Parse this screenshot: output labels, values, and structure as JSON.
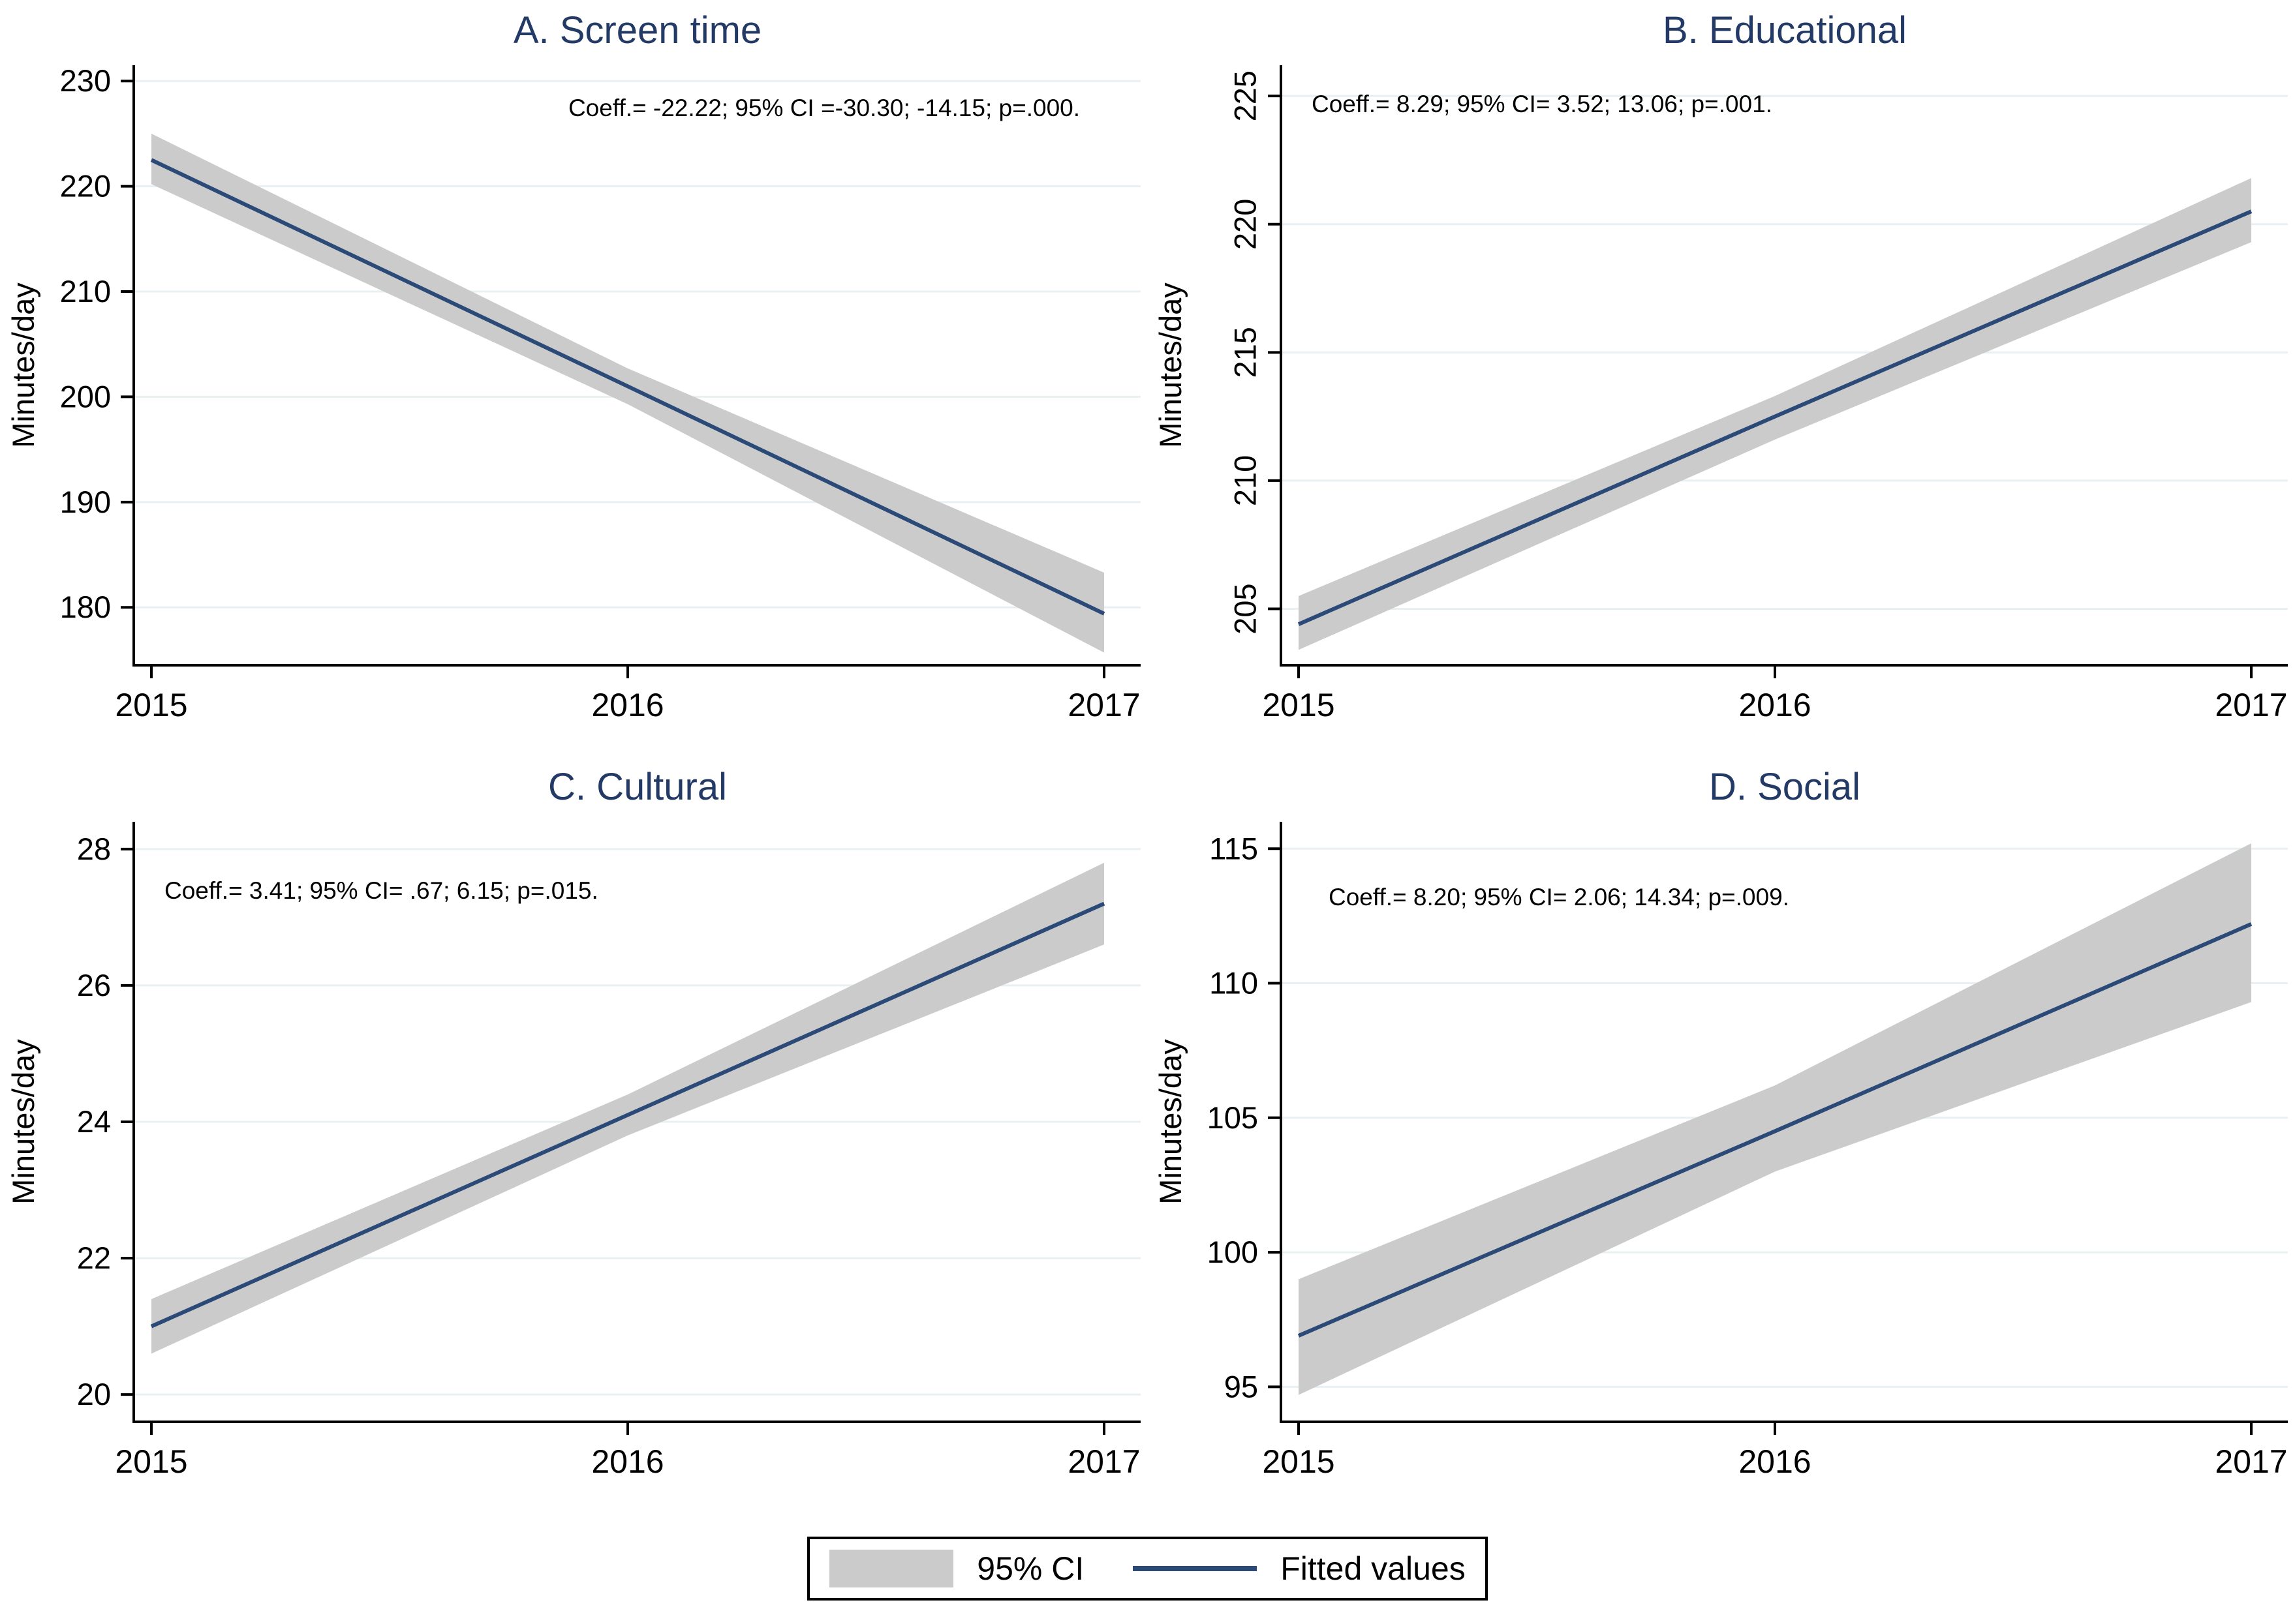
{
  "legend": {
    "ci_label": "95% CI",
    "fit_label": "Fitted values",
    "ci_color": "#cbcbcb",
    "line_color": "#2b4a77",
    "position": "bottom-center"
  },
  "colors": {
    "title_navy": "#233a66",
    "fit_line": "#2b4a77",
    "ci_band": "#cbcbcb",
    "gridline": "#e8f0f2",
    "axis_text": "#000000",
    "background": "#ffffff"
  },
  "chart_data": [
    {
      "type": "line",
      "title": "A. Screen time",
      "annotation": "Coeff.= -22.22; 95% CI =-30.30; -14.15; p=.000.",
      "annotation_anchor": "end",
      "annotation_x": 1655,
      "annotation_y": 178,
      "ylabel": "Minutes/day",
      "x": [
        2015,
        2016,
        2017
      ],
      "xticks": [
        "2015",
        "2016",
        "2017"
      ],
      "fitted": [
        222.5,
        201.0,
        179.4
      ],
      "ci_high": [
        225.0,
        202.7,
        183.3
      ],
      "ci_low": [
        220.2,
        199.3,
        175.7
      ],
      "yticks": [
        180,
        190,
        200,
        210,
        220,
        230
      ],
      "ylim": [
        174.5,
        231.5
      ],
      "ytick_rotated": false,
      "grid": true
    },
    {
      "type": "line",
      "title": "B. Educational",
      "annotation": "Coeff.= 8.29; 95% CI= 3.52; 13.06; p=.001.",
      "annotation_anchor": "start",
      "annotation_x": 252,
      "annotation_y": 172,
      "ylabel": "Minutes/day",
      "x": [
        2015,
        2016,
        2017
      ],
      "xticks": [
        "2015",
        "2016",
        "2017"
      ],
      "fitted": [
        204.4,
        212.5,
        220.5
      ],
      "ci_high": [
        205.5,
        213.3,
        221.8
      ],
      "ci_low": [
        203.4,
        211.6,
        219.3
      ],
      "yticks": [
        205,
        210,
        215,
        220,
        225
      ],
      "ylim": [
        202.8,
        226.2
      ],
      "ytick_rotated": true,
      "grid": true
    },
    {
      "type": "line",
      "title": "C. Cultural",
      "annotation": "Coeff.= 3.41; 95% CI= .67; 6.15; p=.015.",
      "annotation_anchor": "start",
      "annotation_x": 252,
      "annotation_y": 218,
      "ylabel": "Minutes/day",
      "x": [
        2015,
        2016,
        2017
      ],
      "xticks": [
        "2015",
        "2016",
        "2017"
      ],
      "fitted": [
        21.0,
        24.1,
        27.2
      ],
      "ci_high": [
        21.4,
        24.4,
        27.8
      ],
      "ci_low": [
        20.6,
        23.8,
        26.6
      ],
      "yticks": [
        20,
        22,
        24,
        26,
        28
      ],
      "ylim": [
        19.6,
        28.4
      ],
      "ytick_rotated": false,
      "grid": true
    },
    {
      "type": "line",
      "title": "D. Social",
      "annotation": "Coeff.= 8.20; 95% CI= 2.06; 14.34; p=.009.",
      "annotation_anchor": "start",
      "annotation_x": 278,
      "annotation_y": 228,
      "ylabel": "Minutes/day",
      "x": [
        2015,
        2016,
        2017
      ],
      "xticks": [
        "2015",
        "2016",
        "2017"
      ],
      "fitted": [
        96.9,
        104.5,
        112.2
      ],
      "ci_high": [
        99.0,
        106.2,
        115.2
      ],
      "ci_low": [
        94.7,
        103.0,
        109.3
      ],
      "yticks": [
        95,
        100,
        105,
        110,
        115
      ],
      "ylim": [
        93.7,
        116.0
      ],
      "ytick_rotated": false,
      "grid": true
    }
  ]
}
